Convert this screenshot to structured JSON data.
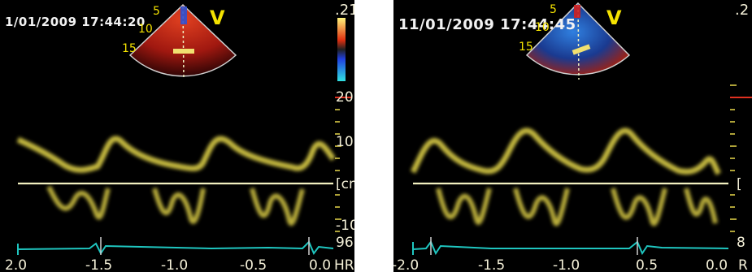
{
  "panels": [
    {
      "timestamp": "1/01/2009 17:44:20",
      "mode": "V",
      "depth_ticks": [
        "5",
        "10",
        "15"
      ],
      "color_scale_top": ".21",
      "velocity_ticks": [
        "20",
        "10",
        "[cm",
        "-10"
      ],
      "hr_value": "96",
      "time_ticks": [
        "2.0",
        "-1.5",
        "-1.0",
        "-0.5",
        "0.0"
      ],
      "hr_label": "HR"
    },
    {
      "timestamp": "11/01/2009 17:44:45",
      "mode": "V",
      "depth_ticks": [
        "5",
        "10",
        "15"
      ],
      "color_scale_top": ".2",
      "velocity_ticks": [
        "[",
        "8"
      ],
      "time_ticks": [
        "-2.0",
        "-1.5",
        "-1.0",
        "0.5",
        "0.0"
      ],
      "hr_label": "R"
    }
  ],
  "colors": {
    "doppler_trace": "#e8d94a",
    "baseline": "#f2f0c0",
    "ecg": "#1fc6c0",
    "scale_marker": "#e03020"
  }
}
